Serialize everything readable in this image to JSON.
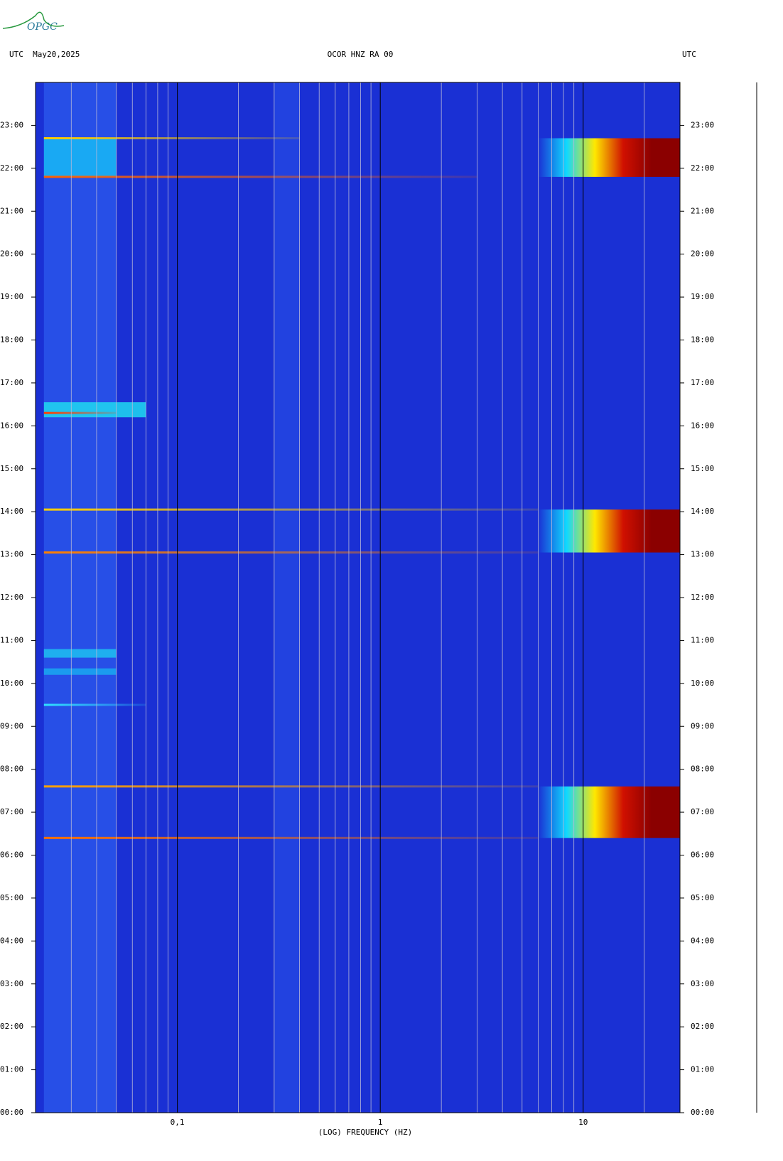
{
  "chart_data": {
    "type": "spectrogram",
    "logo": "OPGC",
    "left_header": "UTC  May20,2025",
    "title": "OCOR HNZ RA 00",
    "right_header": "UTC",
    "x_label": "(LOG) FREQUENCY (HZ)",
    "log_x": true,
    "xlim": [
      0.02,
      30
    ],
    "xticks": [
      {
        "value": 0.1,
        "label": "0,1"
      },
      1,
      10
    ],
    "minor_xticks": [
      0.03,
      0.04,
      0.05,
      0.06,
      0.07,
      0.08,
      0.09,
      0.2,
      0.3,
      0.4,
      0.5,
      0.6,
      0.7,
      0.8,
      0.9,
      2,
      3,
      4,
      5,
      6,
      7,
      8,
      9,
      20
    ],
    "ylim": [
      0,
      24
    ],
    "yticks": [
      {
        "value": 0,
        "label": "00:00"
      },
      {
        "value": 1,
        "label": "01:00"
      },
      {
        "value": 2,
        "label": "02:00"
      },
      {
        "value": 3,
        "label": "03:00"
      },
      {
        "value": 4,
        "label": "04:00"
      },
      {
        "value": 5,
        "label": "05:00"
      },
      {
        "value": 6,
        "label": "06:00"
      },
      {
        "value": 7,
        "label": "07:00"
      },
      {
        "value": 8,
        "label": "08:00"
      },
      {
        "value": 9,
        "label": "09:00"
      },
      {
        "value": 10,
        "label": "10:00"
      },
      {
        "value": 11,
        "label": "11:00"
      },
      {
        "value": 12,
        "label": "12:00"
      },
      {
        "value": 13,
        "label": "13:00"
      },
      {
        "value": 14,
        "label": "14:00"
      },
      {
        "value": 15,
        "label": "15:00"
      },
      {
        "value": 16,
        "label": "16:00"
      },
      {
        "value": 17,
        "label": "17:00"
      },
      {
        "value": 18,
        "label": "18:00"
      },
      {
        "value": 19,
        "label": "19:00"
      },
      {
        "value": 20,
        "label": "20:00"
      },
      {
        "value": 21,
        "label": "21:00"
      },
      {
        "value": 22,
        "label": "22:00"
      },
      {
        "value": 23,
        "label": "23:00"
      }
    ],
    "background": "#1a30d4",
    "bands": [
      {
        "t": [
          0,
          24
        ],
        "f": [
          0.022,
          0.05
        ],
        "colors": [
          "#2a55ea"
        ]
      },
      {
        "t": [
          0,
          24
        ],
        "f": [
          0.3,
          0.4
        ],
        "colors": [
          "#2445e2"
        ]
      },
      {
        "t": [
          21.8,
          22.7
        ],
        "f": [
          0.022,
          0.05
        ],
        "colors": [
          "#18b8f5"
        ]
      },
      {
        "t": [
          16.2,
          16.55
        ],
        "f": [
          0.022,
          0.07
        ],
        "colors": [
          "#20d8f0"
        ]
      },
      {
        "t": [
          10.6,
          10.8
        ],
        "f": [
          0.022,
          0.05
        ],
        "colors": [
          "#1ec0f0"
        ]
      },
      {
        "t": [
          10.2,
          10.35
        ],
        "f": [
          0.022,
          0.05
        ],
        "colors": [
          "#1aa8f0"
        ]
      },
      {
        "t": [
          21.8,
          22.7
        ],
        "f": [
          6,
          30
        ],
        "colors": [
          "#1a30d4",
          "#10d8ff",
          "#ffe800",
          "#d01000",
          "#8b0000",
          "#8b0000"
        ]
      },
      {
        "t": [
          13.05,
          14.05
        ],
        "f": [
          6,
          30
        ],
        "colors": [
          "#1a30d4",
          "#10d8ff",
          "#ffe800",
          "#d01000",
          "#8b0000",
          "#8b0000"
        ]
      },
      {
        "t": [
          6.4,
          7.6
        ],
        "f": [
          6,
          30
        ],
        "colors": [
          "#1a30d4",
          "#10d8ff",
          "#ffe800",
          "#d01000",
          "#8b0000",
          "#8b0000"
        ]
      }
    ],
    "lines": [
      {
        "t": 22.7,
        "f": [
          0.022,
          0.4
        ],
        "color": "#ffcc00"
      },
      {
        "t": 21.8,
        "f": [
          0.022,
          3
        ],
        "color": "#ff6000"
      },
      {
        "t": 16.3,
        "f": [
          0.022,
          0.05
        ],
        "color": "#ff4000"
      },
      {
        "t": 14.05,
        "f": [
          0.022,
          6
        ],
        "color": "#ffd000"
      },
      {
        "t": 13.05,
        "f": [
          0.022,
          6
        ],
        "color": "#ff8000"
      },
      {
        "t": 9.5,
        "f": [
          0.022,
          0.07
        ],
        "color": "#30e0ff"
      },
      {
        "t": 7.6,
        "f": [
          0.022,
          6
        ],
        "color": "#ffa000"
      },
      {
        "t": 6.4,
        "f": [
          0.022,
          6
        ],
        "color": "#ff7000"
      }
    ]
  }
}
